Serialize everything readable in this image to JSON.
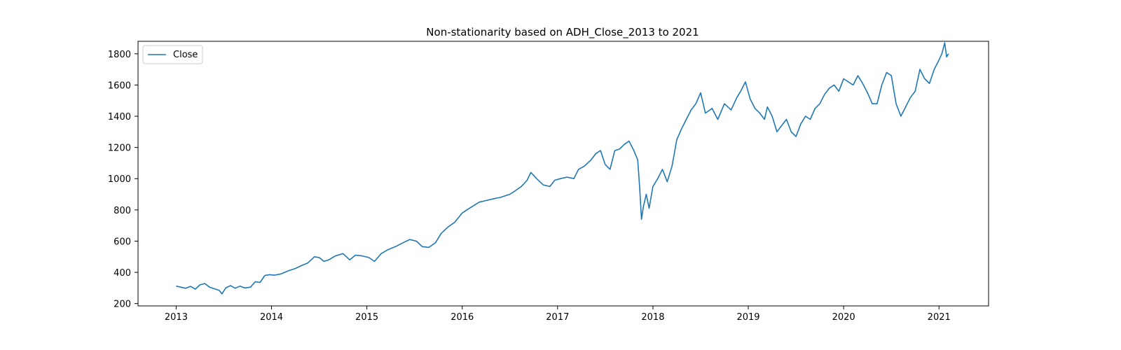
{
  "chart_data": {
    "type": "line",
    "title": "Non-stationarity based on ADH_Close_2013 to 2021",
    "xlabel": "",
    "ylabel": "",
    "xlim": [
      2012.6,
      2021.52
    ],
    "ylim": [
      185,
      1880
    ],
    "x_ticks": [
      2013,
      2014,
      2015,
      2016,
      2017,
      2018,
      2019,
      2020,
      2021
    ],
    "x_tick_labels": [
      "2013",
      "2014",
      "2015",
      "2016",
      "2017",
      "2018",
      "2019",
      "2020",
      "2021"
    ],
    "y_ticks": [
      200,
      400,
      600,
      800,
      1000,
      1200,
      1400,
      1600,
      1800
    ],
    "y_tick_labels": [
      "200",
      "400",
      "600",
      "800",
      "1000",
      "1200",
      "1400",
      "1600",
      "1800"
    ],
    "grid": false,
    "legend": {
      "position": "top-left",
      "entries": [
        "Close"
      ]
    },
    "series": [
      {
        "name": "Close",
        "color": "#1f77b4",
        "x": [
          2013.0,
          2013.05,
          2013.1,
          2013.15,
          2013.2,
          2013.25,
          2013.3,
          2013.35,
          2013.4,
          2013.45,
          2013.48,
          2013.52,
          2013.57,
          2013.62,
          2013.67,
          2013.72,
          2013.78,
          2013.83,
          2013.88,
          2013.93,
          2013.98,
          2014.03,
          2014.1,
          2014.18,
          2014.25,
          2014.32,
          2014.38,
          2014.45,
          2014.5,
          2014.55,
          2014.6,
          2014.67,
          2014.75,
          2014.82,
          2014.88,
          2014.95,
          2015.02,
          2015.08,
          2015.15,
          2015.22,
          2015.3,
          2015.38,
          2015.45,
          2015.52,
          2015.58,
          2015.65,
          2015.72,
          2015.78,
          2015.85,
          2015.92,
          2016.0,
          2016.05,
          2016.1,
          2016.18,
          2016.25,
          2016.32,
          2016.4,
          2016.45,
          2016.5,
          2016.55,
          2016.62,
          2016.68,
          2016.72,
          2016.78,
          2016.85,
          2016.92,
          2016.97,
          2017.03,
          2017.1,
          2017.17,
          2017.22,
          2017.28,
          2017.35,
          2017.4,
          2017.45,
          2017.5,
          2017.55,
          2017.6,
          2017.65,
          2017.7,
          2017.75,
          2017.8,
          2017.84,
          2017.86,
          2017.88,
          2017.9,
          2017.93,
          2017.96,
          2018.0,
          2018.05,
          2018.1,
          2018.15,
          2018.2,
          2018.25,
          2018.3,
          2018.35,
          2018.4,
          2018.45,
          2018.5,
          2018.55,
          2018.62,
          2018.68,
          2018.75,
          2018.82,
          2018.88,
          2018.92,
          2018.97,
          2019.02,
          2019.07,
          2019.12,
          2019.17,
          2019.2,
          2019.25,
          2019.3,
          2019.35,
          2019.4,
          2019.45,
          2019.5,
          2019.55,
          2019.6,
          2019.65,
          2019.7,
          2019.75,
          2019.8,
          2019.85,
          2019.9,
          2019.95,
          2020.0,
          2020.05,
          2020.1,
          2020.15,
          2020.2,
          2020.25,
          2020.3,
          2020.35,
          2020.4,
          2020.45,
          2020.5,
          2020.55,
          2020.6,
          2020.65,
          2020.7,
          2020.75,
          2020.8,
          2020.85,
          2020.9,
          2020.95,
          2021.0,
          2021.03,
          2021.06,
          2021.08,
          2021.1
        ],
        "y": [
          312,
          305,
          298,
          310,
          292,
          320,
          328,
          305,
          295,
          285,
          262,
          300,
          315,
          298,
          312,
          300,
          305,
          340,
          335,
          380,
          385,
          382,
          390,
          410,
          425,
          445,
          460,
          500,
          495,
          470,
          480,
          505,
          520,
          480,
          510,
          505,
          495,
          470,
          520,
          545,
          565,
          590,
          610,
          600,
          565,
          560,
          590,
          650,
          690,
          720,
          780,
          800,
          820,
          850,
          860,
          870,
          880,
          890,
          900,
          920,
          950,
          990,
          1040,
          1000,
          960,
          950,
          990,
          1000,
          1010,
          1000,
          1060,
          1080,
          1120,
          1160,
          1180,
          1090,
          1060,
          1180,
          1190,
          1220,
          1240,
          1180,
          1120,
          950,
          740,
          820,
          900,
          810,
          950,
          1000,
          1060,
          980,
          1080,
          1250,
          1320,
          1380,
          1440,
          1480,
          1550,
          1420,
          1450,
          1380,
          1480,
          1440,
          1520,
          1560,
          1620,
          1510,
          1450,
          1420,
          1380,
          1460,
          1400,
          1300,
          1340,
          1380,
          1300,
          1270,
          1350,
          1400,
          1380,
          1450,
          1480,
          1540,
          1580,
          1600,
          1560,
          1640,
          1620,
          1600,
          1660,
          1610,
          1550,
          1480,
          1480,
          1600,
          1680,
          1660,
          1480,
          1400,
          1460,
          1520,
          1560,
          1700,
          1640,
          1610,
          1700,
          1760,
          1800,
          1870,
          1780,
          1800
        ]
      }
    ]
  }
}
